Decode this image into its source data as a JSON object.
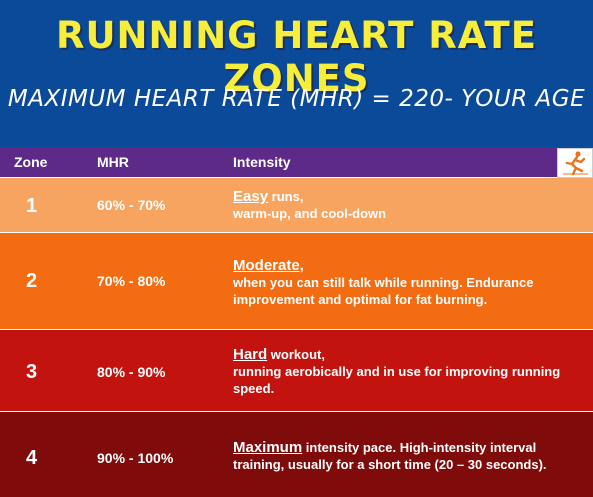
{
  "title": "RUNNING HEART RATE ZONES",
  "formula": "MAXIMUM HEART RATE (MHR) = 220- YOUR AGE",
  "headers": {
    "zone": "Zone",
    "mhr": "MHR",
    "intensity": "Intensity"
  },
  "icon": "runner-icon",
  "rows": [
    {
      "zone": "1",
      "mhr": "60% - 70%",
      "keyword": "Easy",
      "after_keyword": " runs,",
      "detail": "warm-up, and cool-down",
      "color": "#f7a460"
    },
    {
      "zone": "2",
      "mhr": "70% - 80%",
      "keyword": "Moderate,",
      "after_keyword": "",
      "detail": "when you can still talk while running. Endurance improvement and optimal for fat burning.",
      "color": "#f36c12"
    },
    {
      "zone": "3",
      "mhr": "80% - 90%",
      "keyword": "Hard",
      "after_keyword": " workout,",
      "detail": "running aerobically and in use for improving running speed.",
      "color": "#c3130f"
    },
    {
      "zone": "4",
      "mhr": "90% - 100%",
      "keyword": "Maximum",
      "after_keyword": " intensity pace. High-intensity interval training, usually for a short time (20 – 30 seconds).",
      "detail": "",
      "color": "#7f0b0b"
    }
  ],
  "colors": {
    "banner": "#0a4a98",
    "title": "#f6ee3a",
    "header_row": "#5e2a8a",
    "runner": "#e8731a"
  }
}
